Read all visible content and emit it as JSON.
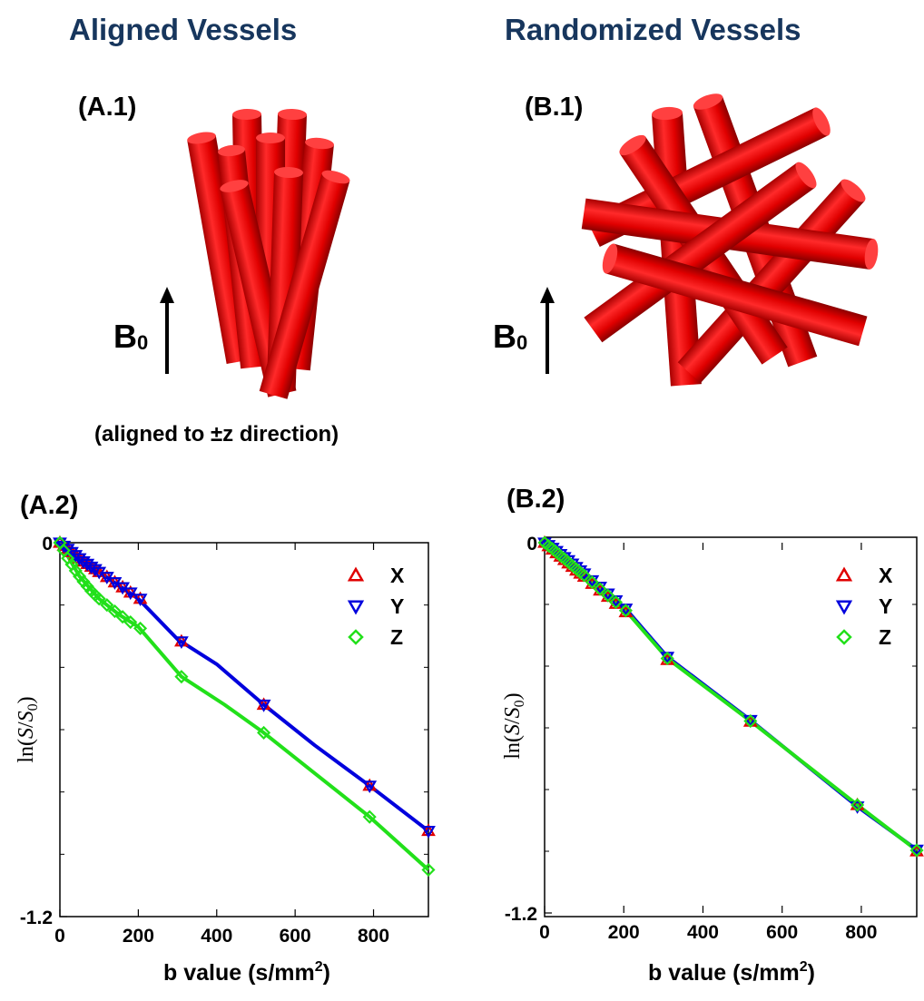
{
  "titles": {
    "left": "Aligned Vessels",
    "right": "Randomized Vessels"
  },
  "panels": {
    "a1": "(A.1)",
    "b1": "(B.1)",
    "a2": "(A.2)",
    "b2": "(B.2)"
  },
  "b0_label": "B",
  "b0_sub": "0",
  "aligned_note": "(aligned to ±z direction)",
  "colors": {
    "vessel": "#ee0000",
    "x": "#e00000",
    "y": "#0000dd",
    "z": "#22e01a"
  },
  "chart_data": [
    {
      "type": "line",
      "panel": "(A.2)",
      "xlabel": "b value (s/mm2)",
      "xlabel_prefix": "b value (s/mm",
      "xlabel_sup": "2",
      "xlabel_suffix": ")",
      "ylabel": "ln(S/S0)",
      "ylabel_parts": [
        "ln(",
        "S",
        "/",
        "S",
        "0",
        ")"
      ],
      "xlim": [
        0,
        940
      ],
      "ylim": [
        -1.2,
        0
      ],
      "xticks": [
        "0",
        "200",
        "400",
        "600",
        "800"
      ],
      "xtick_values": [
        0,
        200,
        400,
        600,
        800
      ],
      "yticks": [
        "0",
        "-1.2"
      ],
      "ytick_values": [
        0,
        -1.2
      ],
      "legend": [
        "X",
        "Y",
        "Z"
      ],
      "legend_position": "top-right",
      "series": [
        {
          "name": "X",
          "marker": "triangle-up",
          "color": "#e00000",
          "x": [
            0,
            10,
            20,
            30,
            40,
            50,
            60,
            70,
            80,
            90,
            100,
            120,
            140,
            160,
            180,
            205,
            310,
            520,
            790,
            940
          ],
          "y": [
            0,
            -0.01,
            -0.02,
            -0.03,
            -0.04,
            -0.05,
            -0.06,
            -0.068,
            -0.077,
            -0.085,
            -0.094,
            -0.11,
            -0.127,
            -0.143,
            -0.16,
            -0.18,
            -0.317,
            -0.52,
            -0.78,
            -0.925
          ]
        },
        {
          "name": "Y",
          "marker": "triangle-down",
          "color": "#0000dd",
          "x": [
            0,
            10,
            20,
            30,
            40,
            50,
            60,
            70,
            80,
            90,
            100,
            120,
            140,
            160,
            180,
            205,
            310,
            520,
            790,
            940
          ],
          "y": [
            0,
            -0.01,
            -0.02,
            -0.03,
            -0.04,
            -0.05,
            -0.06,
            -0.068,
            -0.077,
            -0.085,
            -0.094,
            -0.11,
            -0.127,
            -0.143,
            -0.16,
            -0.18,
            -0.317,
            -0.52,
            -0.78,
            -0.925
          ]
        },
        {
          "name": "Z",
          "marker": "diamond",
          "color": "#22e01a",
          "x": [
            0,
            10,
            20,
            30,
            40,
            50,
            60,
            70,
            80,
            90,
            100,
            120,
            140,
            160,
            180,
            205,
            310,
            520,
            790,
            940
          ],
          "y": [
            0,
            -0.025,
            -0.05,
            -0.07,
            -0.09,
            -0.108,
            -0.125,
            -0.14,
            -0.155,
            -0.168,
            -0.18,
            -0.2,
            -0.22,
            -0.238,
            -0.255,
            -0.275,
            -0.43,
            -0.61,
            -0.88,
            -1.05
          ]
        }
      ],
      "fit_lines": [
        {
          "name": "X/Y fit",
          "color": "#0000dd",
          "x": [
            0,
            100,
            200,
            300,
            400,
            520,
            650,
            790,
            940
          ],
          "y": [
            0,
            -0.094,
            -0.18,
            -0.31,
            -0.39,
            -0.52,
            -0.65,
            -0.78,
            -0.925
          ]
        },
        {
          "name": "Z fit",
          "color": "#22e01a",
          "x": [
            0,
            50,
            100,
            150,
            200,
            310,
            420,
            520,
            650,
            790,
            940
          ],
          "y": [
            0,
            -0.108,
            -0.18,
            -0.23,
            -0.27,
            -0.43,
            -0.52,
            -0.61,
            -0.74,
            -0.88,
            -1.05
          ]
        }
      ]
    },
    {
      "type": "line",
      "panel": "(B.2)",
      "xlabel": "b value (s/mm2)",
      "xlabel_prefix": "b value (s/mm",
      "xlabel_sup": "2",
      "xlabel_suffix": ")",
      "ylabel": "ln(S/S0)",
      "ylabel_parts": [
        "ln(",
        "S",
        "/",
        "S",
        "0",
        ")"
      ],
      "xlim": [
        0,
        940
      ],
      "ylim": [
        -1.2,
        0
      ],
      "xticks": [
        "0",
        "200",
        "400",
        "600",
        "800"
      ],
      "xtick_values": [
        0,
        200,
        400,
        600,
        800
      ],
      "yticks": [
        "0",
        "-1.2"
      ],
      "ytick_values": [
        0,
        -1.2
      ],
      "legend": [
        "X",
        "Y",
        "Z"
      ],
      "legend_position": "top-right",
      "series": [
        {
          "name": "X",
          "marker": "triangle-up",
          "color": "#e00000",
          "x": [
            0,
            10,
            20,
            30,
            40,
            50,
            60,
            70,
            80,
            90,
            100,
            120,
            140,
            160,
            180,
            205,
            310,
            520,
            790,
            940
          ],
          "y": [
            0,
            -0.011,
            -0.022,
            -0.034,
            -0.045,
            -0.056,
            -0.067,
            -0.078,
            -0.09,
            -0.1,
            -0.11,
            -0.133,
            -0.155,
            -0.175,
            -0.198,
            -0.225,
            -0.38,
            -0.58,
            -0.85,
            -1.0
          ]
        },
        {
          "name": "Y",
          "marker": "triangle-down",
          "color": "#0000dd",
          "x": [
            0,
            10,
            20,
            30,
            40,
            50,
            60,
            70,
            80,
            90,
            100,
            120,
            140,
            160,
            180,
            205,
            310,
            520,
            790,
            940
          ],
          "y": [
            0,
            -0.008,
            -0.017,
            -0.027,
            -0.037,
            -0.047,
            -0.057,
            -0.068,
            -0.079,
            -0.09,
            -0.1,
            -0.122,
            -0.143,
            -0.165,
            -0.187,
            -0.214,
            -0.37,
            -0.575,
            -0.855,
            -0.995
          ]
        },
        {
          "name": "Z",
          "marker": "diamond",
          "color": "#22e01a",
          "x": [
            0,
            10,
            20,
            30,
            40,
            50,
            60,
            70,
            80,
            90,
            100,
            120,
            140,
            160,
            180,
            205,
            310,
            520,
            790,
            940
          ],
          "y": [
            0,
            -0.01,
            -0.02,
            -0.031,
            -0.042,
            -0.052,
            -0.063,
            -0.074,
            -0.085,
            -0.096,
            -0.106,
            -0.128,
            -0.15,
            -0.171,
            -0.193,
            -0.22,
            -0.375,
            -0.578,
            -0.85,
            -0.997
          ]
        }
      ],
      "fit_lines": [
        {
          "name": "Y fit",
          "color": "#0000dd",
          "x": [
            0,
            100,
            205,
            310,
            520,
            790,
            940
          ],
          "y": [
            0,
            -0.1,
            -0.214,
            -0.37,
            -0.575,
            -0.855,
            -0.995
          ]
        },
        {
          "name": "Z fit",
          "color": "#22e01a",
          "x": [
            0,
            100,
            205,
            310,
            520,
            790,
            940
          ],
          "y": [
            0,
            -0.106,
            -0.22,
            -0.375,
            -0.578,
            -0.85,
            -0.997
          ]
        }
      ]
    }
  ]
}
